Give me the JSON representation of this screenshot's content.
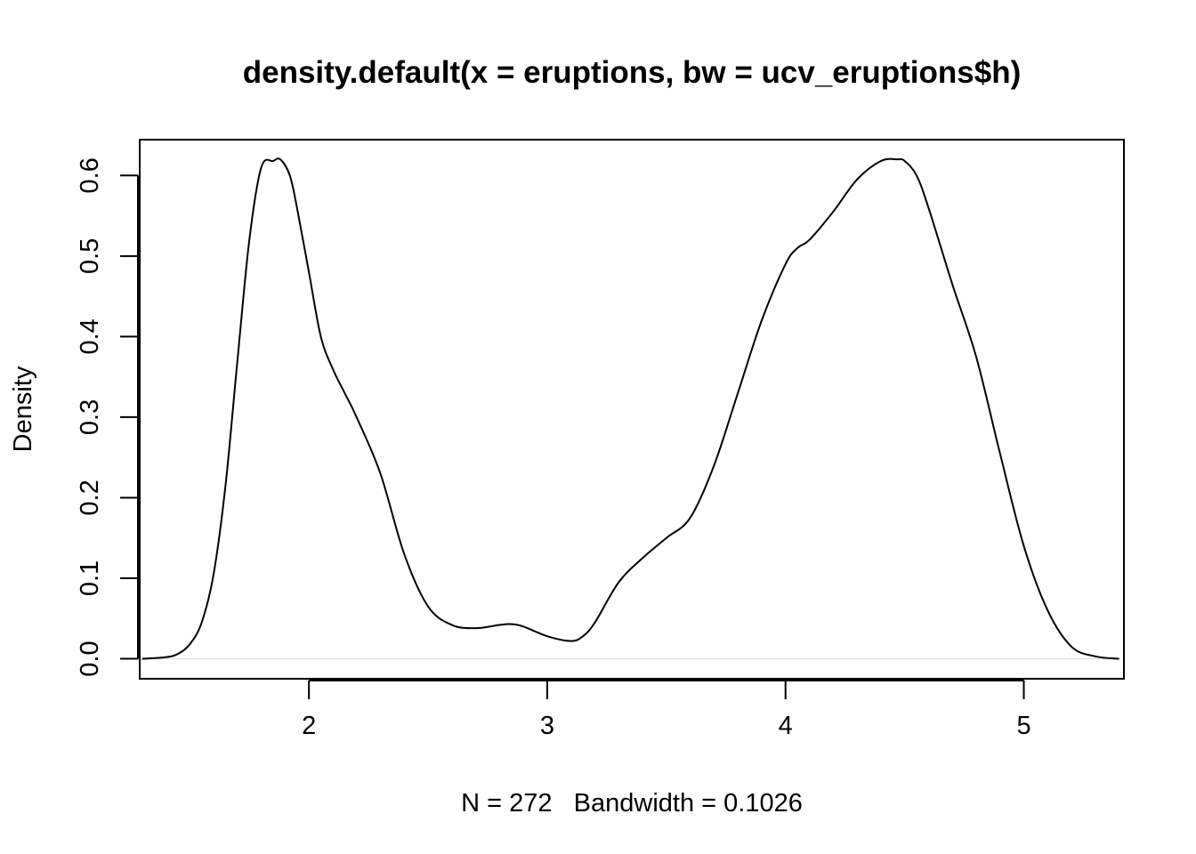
{
  "chart_data": {
    "type": "line",
    "title": "density.default(x = eruptions, bw = ucv_eruptions$h)",
    "xlabel": "N = 272   Bandwidth = 0.1026",
    "ylabel": "Density",
    "x_ticks": [
      "2",
      "3",
      "4",
      "5"
    ],
    "x_tick_values": [
      2,
      3,
      4,
      5
    ],
    "y_ticks": [
      "0.0",
      "0.1",
      "0.2",
      "0.3",
      "0.4",
      "0.5",
      "0.6"
    ],
    "y_tick_values": [
      0,
      0.1,
      0.2,
      0.3,
      0.4,
      0.5,
      0.6
    ],
    "xlim": [
      1.29,
      5.42
    ],
    "ylim": [
      -0.0248,
      0.6445
    ],
    "grid": false,
    "legend": "none",
    "series": [
      {
        "color": "#000000",
        "x": [
          1.3,
          1.4,
          1.45,
          1.5,
          1.55,
          1.6,
          1.65,
          1.7,
          1.75,
          1.8,
          1.85,
          1.88,
          1.92,
          1.95,
          2.0,
          2.05,
          2.1,
          2.15,
          2.2,
          2.3,
          2.4,
          2.5,
          2.6,
          2.7,
          2.8,
          2.85,
          2.9,
          3.0,
          3.1,
          3.15,
          3.2,
          3.3,
          3.4,
          3.5,
          3.6,
          3.7,
          3.8,
          3.9,
          4.0,
          4.05,
          4.1,
          4.2,
          4.3,
          4.4,
          4.47,
          4.5,
          4.55,
          4.6,
          4.7,
          4.8,
          4.9,
          5.0,
          5.1,
          5.2,
          5.3,
          5.4
        ],
        "y": [
          0.0,
          0.002,
          0.006,
          0.018,
          0.045,
          0.105,
          0.215,
          0.37,
          0.52,
          0.61,
          0.618,
          0.62,
          0.6,
          0.56,
          0.48,
          0.4,
          0.36,
          0.33,
          0.3,
          0.23,
          0.13,
          0.065,
          0.042,
          0.038,
          0.042,
          0.043,
          0.04,
          0.028,
          0.022,
          0.028,
          0.045,
          0.095,
          0.125,
          0.15,
          0.175,
          0.24,
          0.33,
          0.42,
          0.49,
          0.51,
          0.52,
          0.555,
          0.595,
          0.618,
          0.62,
          0.618,
          0.6,
          0.56,
          0.465,
          0.375,
          0.255,
          0.14,
          0.06,
          0.015,
          0.003,
          0.0
        ]
      }
    ]
  }
}
